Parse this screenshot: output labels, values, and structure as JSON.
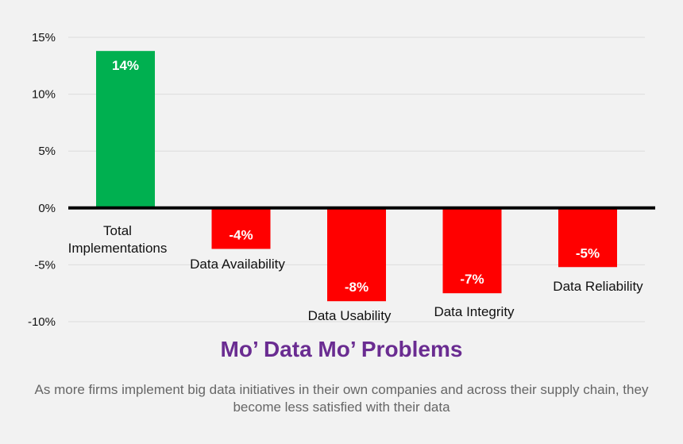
{
  "chart_data": {
    "type": "bar",
    "title": "Mo’ Data Mo’ Problems",
    "subtitle": "As more firms implement big data initiatives in their own companies and across their supply chain, they become less satisfied with their data",
    "xlabel": "",
    "ylabel": "",
    "ylim": [
      -10,
      15
    ],
    "grid": true,
    "yticks": [
      "15%",
      "10%",
      "5%",
      "0%",
      "-5%",
      "-10%"
    ],
    "ytick_values": [
      15,
      10,
      5,
      0,
      -5,
      -10
    ],
    "categories": [
      "Total Implementations",
      "Data Availability",
      "Data Usability",
      "Data Integrity",
      "Data Reliability"
    ],
    "category_lines": [
      [
        "Total",
        "Implementations"
      ],
      [
        "Data Availability"
      ],
      [
        "Data Usability"
      ],
      [
        "Data Integrity"
      ],
      [
        "Data Reliability"
      ]
    ],
    "values": [
      13.8,
      -3.6,
      -8.2,
      -7.5,
      -5.2
    ],
    "data_labels": [
      "14%",
      "-4%",
      "-8%",
      "-7%",
      "-5%"
    ],
    "colors": {
      "positive": "#00b050",
      "negative": "#ff0000",
      "title": "#6a2c91",
      "subtitle": "#666666"
    }
  }
}
